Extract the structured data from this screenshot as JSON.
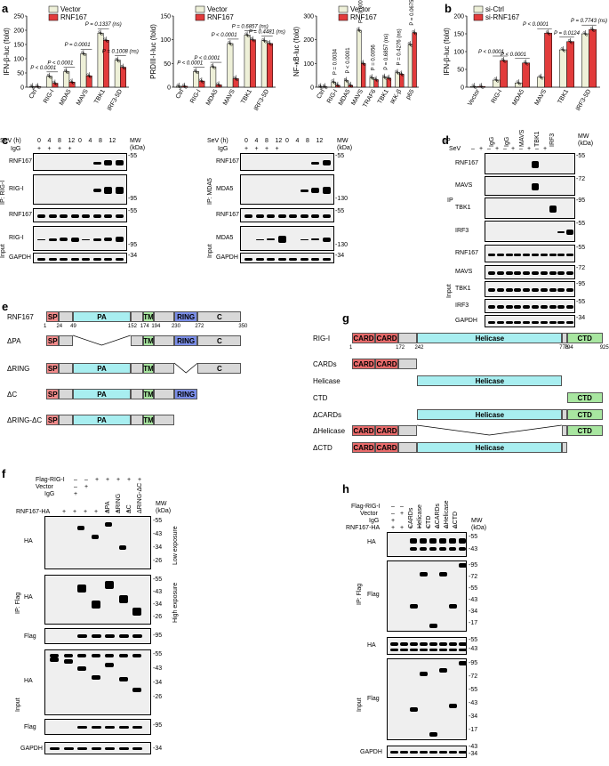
{
  "panels": {
    "a": "a",
    "b": "b",
    "c": "c",
    "d": "d",
    "e": "e",
    "f": "f",
    "g": "g",
    "h": "h"
  },
  "colors": {
    "vector": "#eef0d8",
    "rnf": "#e23b3b",
    "pa": "#a8eef0",
    "sp": "#f28b8b",
    "tm": "#a8e6a0",
    "ring": "#7b8ee8",
    "grey": "#d8d8d8",
    "helicase": "#a8eef0",
    "card": "#e86a6a",
    "ctd": "#a8e6a0",
    "sictrl": "#eef0d8",
    "sirnf": "#e23b3b"
  },
  "chart_data": [
    {
      "type": "bar",
      "id": "ifnb",
      "ylabel": "IFN-β-luc (fold)",
      "ylim": [
        0,
        250
      ],
      "yticks": [
        "0",
        "50",
        "100",
        "150",
        "200",
        "250"
      ],
      "categories": [
        "Ctrl",
        "RIG-I",
        "MDA5",
        "MAVS",
        "TBK1",
        "IRF3-5D"
      ],
      "series": [
        {
          "name": "Vector",
          "values": [
            2,
            38,
            55,
            118,
            190,
            95
          ]
        },
        {
          "name": "RNF167",
          "values": [
            2,
            14,
            18,
            40,
            165,
            70
          ]
        }
      ],
      "pvalues": [
        "P < 0.0001",
        "P < 0.0001",
        "P = 0.0001",
        "P = 0.1337 (ns)",
        "P = 0.1008 (ns)"
      ]
    },
    {
      "type": "bar",
      "id": "prdiii",
      "ylabel": "PRDIII-I-luc (fold)",
      "ylim": [
        0,
        150
      ],
      "yticks": [
        "0",
        "50",
        "100",
        "150"
      ],
      "categories": [
        "Ctrl",
        "RIG-I",
        "MDA5",
        "MAVS",
        "TBK1",
        "IRF3-5D"
      ],
      "series": [
        {
          "name": "Vector",
          "values": [
            2,
            33,
            43,
            92,
            110,
            98
          ]
        },
        {
          "name": "RNF167",
          "values": [
            2,
            13,
            5,
            18,
            100,
            92
          ]
        }
      ],
      "pvalues": [
        "P < 0.0001",
        "P < 0.0001",
        "P < 0.0001",
        "P = 0.6857 (ns)",
        "P = 0.4481 (ns)"
      ]
    },
    {
      "type": "bar",
      "id": "nfkb",
      "ylabel": "NF-κB-luc (fold)",
      "ylim": [
        0,
        300
      ],
      "yticks": [
        "0",
        "100",
        "200",
        "300"
      ],
      "categories": [
        "Ctrl",
        "RIG-I",
        "MDA5",
        "MAVS",
        "TRAF6",
        "TBK1",
        "IKK-β",
        "p65"
      ],
      "series": [
        {
          "name": "Vector",
          "values": [
            2,
            22,
            28,
            240,
            40,
            42,
            62,
            180
          ]
        },
        {
          "name": "RNF167",
          "values": [
            2,
            8,
            8,
            100,
            32,
            38,
            55,
            230
          ]
        }
      ],
      "pvalues": [
        "P = 0.0034",
        "P < 0.0001",
        "P = 0.0001",
        "P = 0.0056",
        "P = 0.6857 (ns)",
        "P = 0.4276 (ns)",
        "P = 0.0675 (ns)"
      ]
    },
    {
      "type": "bar",
      "id": "sirna",
      "ylabel": "IFN-β-luc (fold)",
      "ylim": [
        0,
        200
      ],
      "yticks": [
        "0",
        "50",
        "100",
        "150",
        "200"
      ],
      "categories": [
        "Vector",
        "RIG-I",
        "MDA5",
        "MAVS",
        "TBK1",
        "IRF3-5D"
      ],
      "series": [
        {
          "name": "si-Ctrl",
          "values": [
            2,
            20,
            12,
            28,
            105,
            150
          ]
        },
        {
          "name": "si-RNF167",
          "values": [
            2,
            75,
            68,
            152,
            128,
            162
          ]
        }
      ],
      "pvalues": [
        "P < 0.0001",
        "P < 0.0001",
        "P < 0.0001",
        "P = 0.0124",
        "P = 0.7743 (ns)"
      ]
    }
  ],
  "c": {
    "sev_label": "SeV (h)",
    "sev_times": [
      "0",
      "4",
      "8",
      "12",
      "0",
      "4",
      "8",
      "12"
    ],
    "igg_label": "IgG",
    "mw_label": "MW (kDa)",
    "left": {
      "ip": "IP: RIG-I",
      "input": "Input",
      "rows": [
        "RNF167",
        "RIG-I",
        "RNF167",
        "RIG-I",
        "GAPDH"
      ],
      "mw": [
        "-55",
        "-95",
        "-55",
        "-95",
        "-34"
      ]
    },
    "right": {
      "ip": "IP: MDA5",
      "input": "Input",
      "rows": [
        "RNF167",
        "MDA5",
        "RNF167",
        "MDA5",
        "GAPDH"
      ],
      "mw": [
        "-55",
        "-130",
        "-55",
        "-130",
        "-34"
      ]
    }
  },
  "d": {
    "ip_label": "IP",
    "sev": "SeV",
    "cols": [
      "IgG",
      "IgG",
      "MAVS",
      "TBK1",
      "IRF3"
    ],
    "mw_label": "MW (kDa)",
    "rows": [
      "RNF167",
      "MAVS",
      "TBK1",
      "IRF3",
      "RNF167",
      "MAVS",
      "TBK1",
      "IRF3",
      "GAPDH"
    ],
    "mw": [
      "-55",
      "-72",
      "-95",
      "-55",
      "-55",
      "-72",
      "-95",
      "-55",
      "-34"
    ],
    "side_ip": "IP",
    "side_input": "Input"
  },
  "e": {
    "constructs": [
      "RNF167",
      "ΔPA",
      "ΔRING",
      "ΔC",
      "ΔRING-ΔC"
    ],
    "domains": {
      "sp": "SP",
      "pa": "PA",
      "tm": "TM",
      "ring": "RING",
      "c": "C"
    },
    "positions": [
      "1",
      "24",
      "49",
      "152",
      "174",
      "194",
      "230",
      "272",
      "350"
    ]
  },
  "g": {
    "constructs": [
      "RIG-I",
      "CARDs",
      "Helicase",
      "CTD",
      "ΔCARDs",
      "ΔHelicase",
      "ΔCTD"
    ],
    "domains": {
      "card": "CARD",
      "helicase": "Helicase",
      "ctd": "CTD"
    },
    "positions": [
      "1",
      "172",
      "242",
      "776",
      "794",
      "925"
    ]
  },
  "f": {
    "flag_label": "Flag-RIG-I",
    "vector": "Vector",
    "igg": "IgG",
    "rnf_label": "RNF167-HA",
    "cols": [
      "ΔPA",
      "ΔRING",
      "ΔC",
      "ΔRING-ΔC"
    ],
    "mw_label": "MW (kDa)",
    "ip": "IP: Flag",
    "input": "Input",
    "low": "Low exposure",
    "high": "High exposure",
    "rows": [
      "HA",
      "HA",
      "Flag",
      "HA",
      "Flag",
      "GAPDH"
    ],
    "mw_low": [
      "-55",
      "-43",
      "-34",
      "-26"
    ],
    "mw_high": [
      "-55",
      "-43",
      "-34",
      "-26"
    ],
    "mw_flag": [
      "-95"
    ],
    "mw_in": [
      "-55",
      "-43",
      "-34",
      "-26"
    ],
    "mw_inflag": [
      "-95"
    ],
    "mw_gapdh": [
      "-34"
    ]
  },
  "h": {
    "flag_label": "Flag-RIG-I",
    "vector": "Vector",
    "igg": "IgG",
    "rnf_label": "RNF167-HA",
    "cols": [
      "CARDs",
      "Helicase",
      "CTD",
      "ΔCARDs",
      "ΔHelicase",
      "ΔCTD"
    ],
    "mw_label": "MW (kDa)",
    "ip": "IP: Flag",
    "input": "Input",
    "rows": [
      "HA",
      "Flag",
      "HA",
      "Flag",
      "GAPDH"
    ],
    "mw_ha": [
      "-55",
      "-43"
    ],
    "mw_flag": [
      "-95",
      "-72",
      "-55",
      "-43",
      "-34",
      "-17"
    ],
    "mw_inha": [
      "-55",
      "-43"
    ],
    "mw_inflag": [
      "-95",
      "-72",
      "-55",
      "-43",
      "-34",
      "-17"
    ],
    "mw_gapdh": [
      "-43",
      "-34"
    ]
  },
  "signs": {
    "minus": "–",
    "plus": "+"
  }
}
